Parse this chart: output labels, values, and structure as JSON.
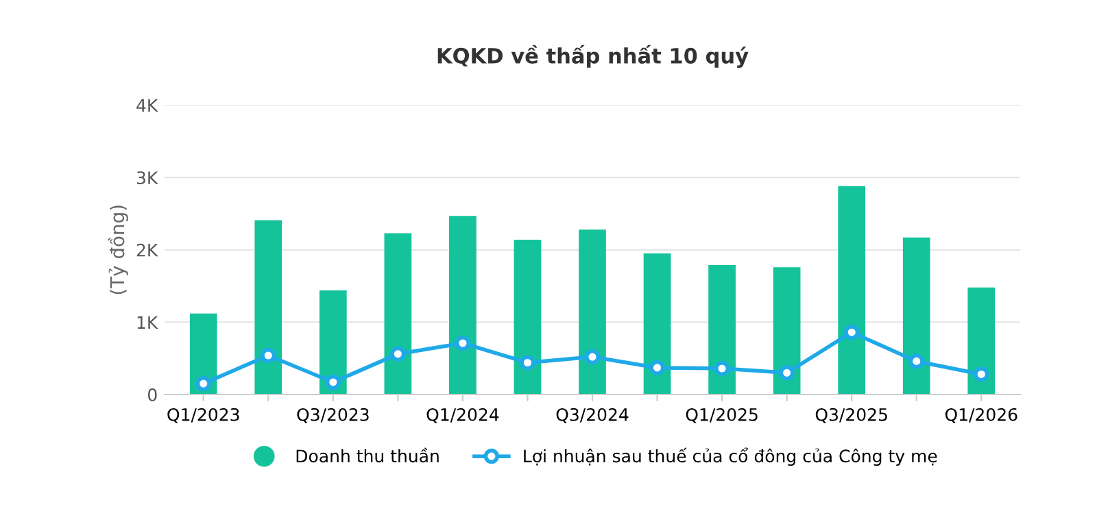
{
  "chart_data": {
    "type": "bar",
    "title": "KQKD về thấp nhất 10 quý",
    "ylabel": "(Tỷ đồng)",
    "categories": [
      "Q1/2023",
      null,
      "Q3/2023",
      null,
      "Q1/2024",
      null,
      "Q3/2024",
      null,
      "Q1/2025",
      null,
      "Q3/2025",
      null,
      "Q1/2026"
    ],
    "series": [
      {
        "name": "Doanh thu thuần",
        "color": "#14c39a",
        "values": [
          1.12,
          2.41,
          1.44,
          2.23,
          2.47,
          2.14,
          2.28,
          1.95,
          1.79,
          1.76,
          2.88,
          2.17,
          1.48
        ]
      },
      {
        "name": "Lợi nhuận sau thuế của cổ đông của Công ty mẹ",
        "type": "line",
        "color": "#1fa9e8",
        "marker": "circle",
        "line_style": "solid",
        "values": [
          0.15,
          0.54,
          0.17,
          0.56,
          0.71,
          0.44,
          0.52,
          0.37,
          0.36,
          0.3,
          0.86,
          0.46,
          0.28
        ]
      }
    ],
    "ylim": [
      0,
      4
    ],
    "yticks": [
      {
        "value": 0,
        "label": "0"
      },
      {
        "value": 1,
        "label": "1K"
      },
      {
        "value": 2,
        "label": "2K"
      },
      {
        "value": 3,
        "label": "3K"
      },
      {
        "value": 4,
        "label": "4K"
      }
    ],
    "grid": "y",
    "legend": "bottom"
  }
}
